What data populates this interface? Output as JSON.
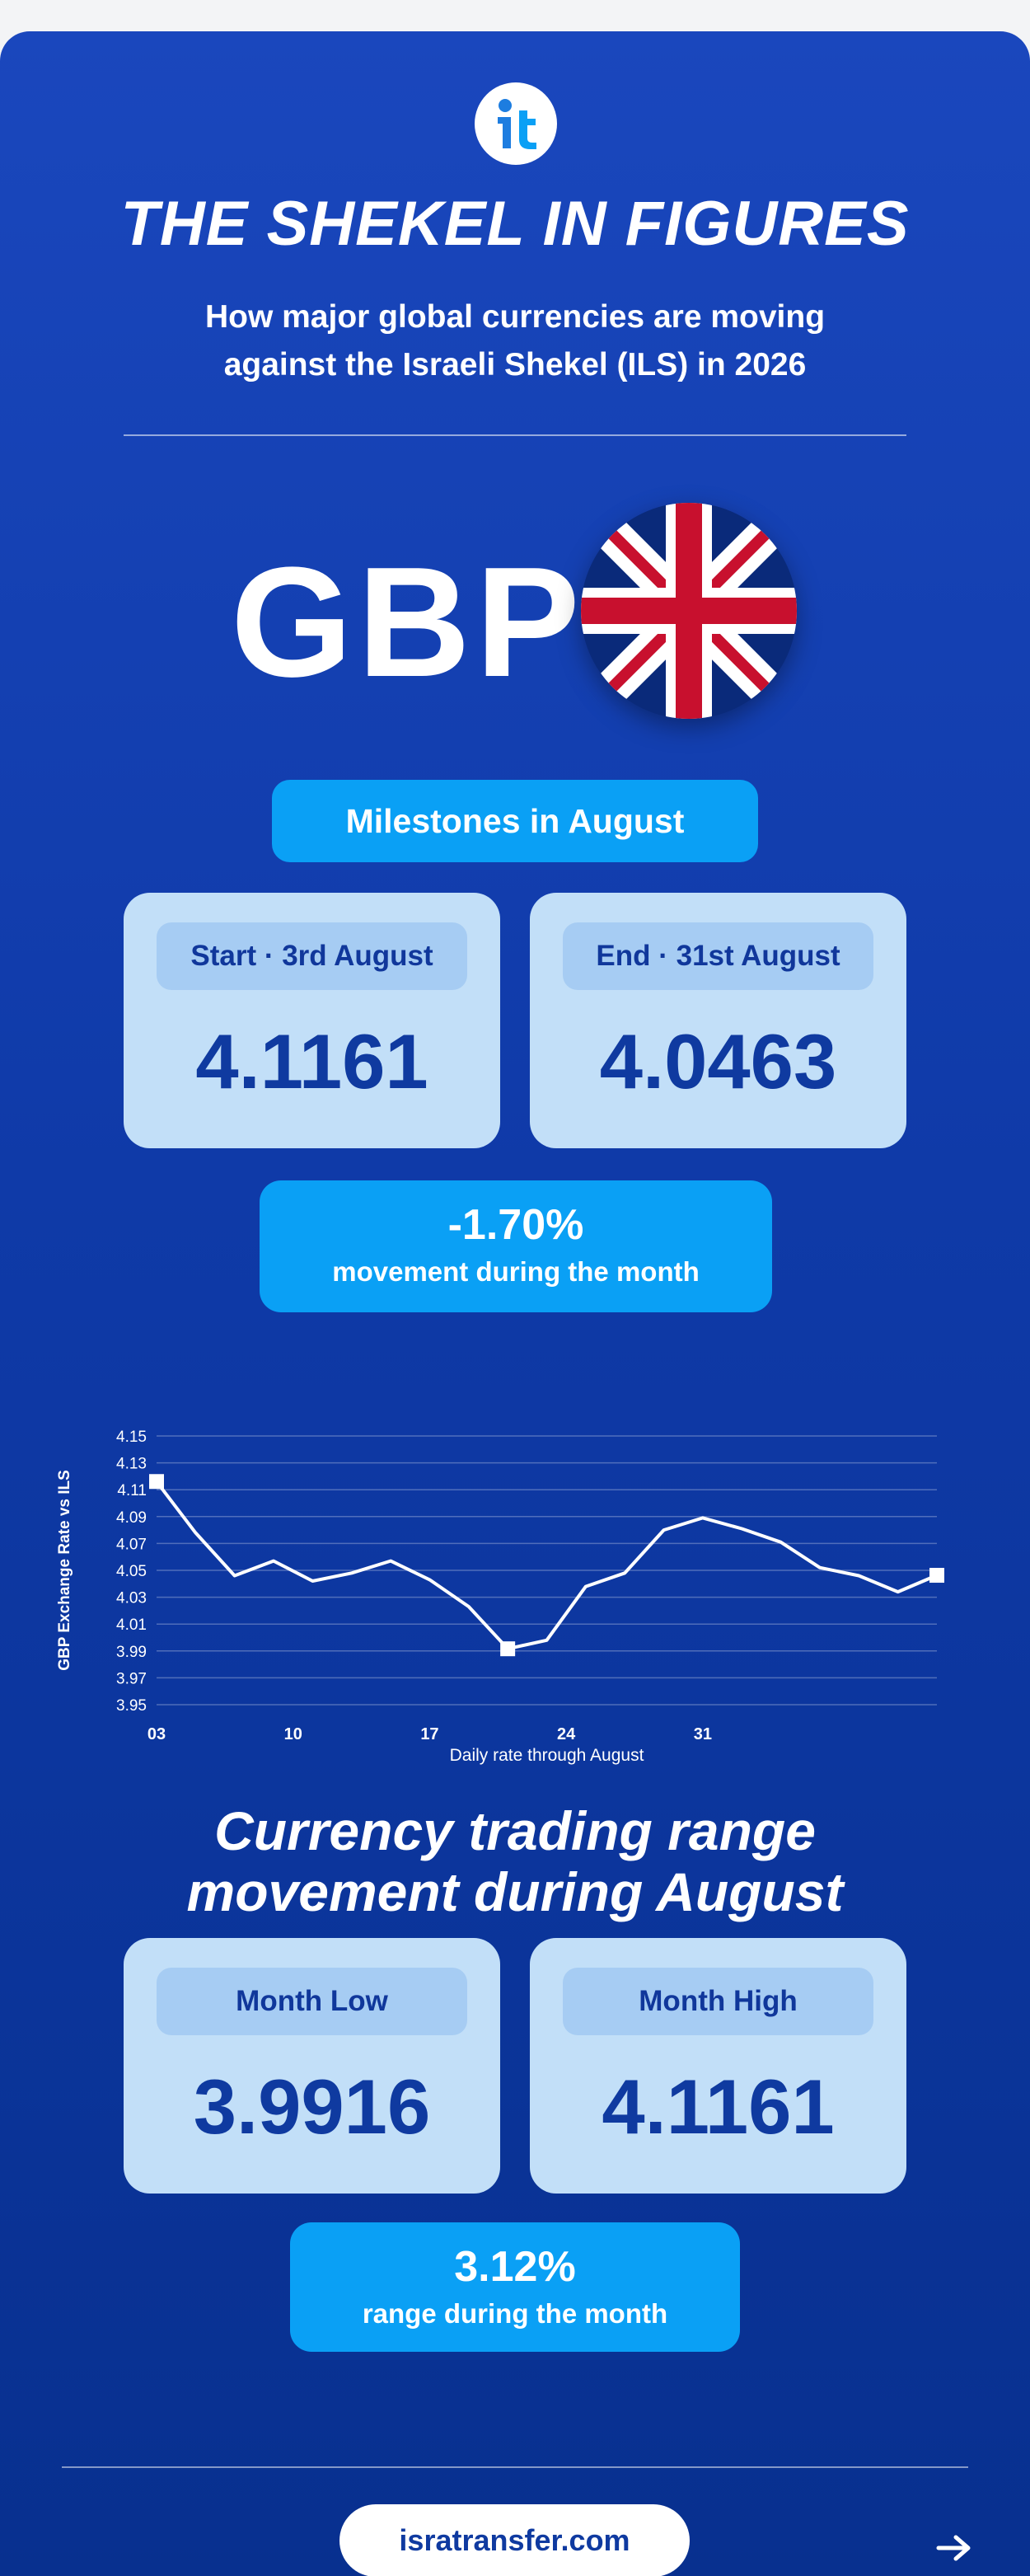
{
  "header": {
    "title": "THE SHEKEL IN FIGURES",
    "subtitle_line1": "How major global currencies are moving",
    "subtitle_line2": "against the Israeli Shekel (ILS) in 2026"
  },
  "currency": {
    "code": "GBP",
    "flag_icon": "uk-flag-icon"
  },
  "milestones": {
    "heading": "Milestones in August",
    "start_label": "Start · 3rd August",
    "start_value": "4.1161",
    "end_label": "End · 31st August",
    "end_value": "4.0463",
    "change_value": "-1.70%",
    "change_caption": "movement during the month"
  },
  "chart_data": {
    "type": "line",
    "x": [
      3,
      5,
      7,
      9,
      11,
      13,
      15,
      17,
      19,
      21,
      23,
      25,
      27,
      29,
      31,
      33,
      35,
      37,
      39,
      41,
      43
    ],
    "y": [
      4.1161,
      4.078,
      4.046,
      4.057,
      4.042,
      4.048,
      4.057,
      4.043,
      4.023,
      3.9916,
      3.998,
      4.038,
      4.048,
      4.08,
      4.089,
      4.081,
      4.071,
      4.052,
      4.046,
      4.034,
      4.0463
    ],
    "x_tick_labels": [
      "03",
      "10",
      "17",
      "24",
      "31"
    ],
    "y_ticks": [
      "4.15",
      "4.13",
      "4.11",
      "4.09",
      "4.07",
      "4.05",
      "4.03",
      "4.01",
      "3.99",
      "3.97",
      "3.95"
    ],
    "ylim": [
      3.95,
      4.15
    ],
    "xlabel": "Daily rate through August",
    "ylabel": "GBP Exchange Rate vs ILS",
    "grid": true,
    "line_color": "#ffffff"
  },
  "range": {
    "heading_line1": "Currency trading range",
    "heading_line2": "movement during August",
    "low_label": "Month Low",
    "low_value": "3.9916",
    "high_label": "Month High",
    "high_value": "4.1161",
    "range_value": "3.12%",
    "range_caption": "range during the month"
  },
  "footer": {
    "site": "isratransfer.com",
    "arrow_icon": "arrow-right-icon"
  },
  "colors": {
    "accent": "#0aa0f5",
    "card_bg": "#c2dff8",
    "navy": "#0f3aa0"
  }
}
